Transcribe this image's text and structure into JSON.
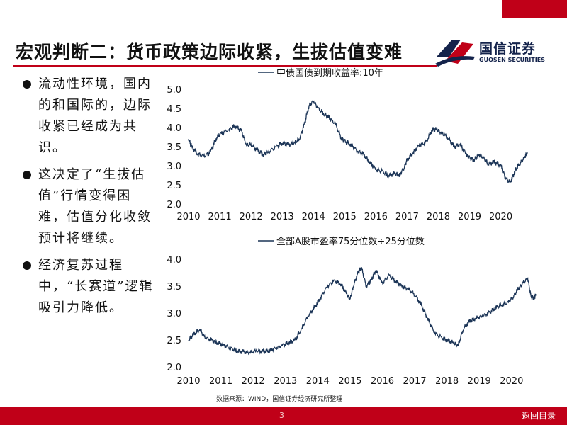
{
  "slide": {
    "title": "宏观判断二：货币政策边际收紧，生拔估值变难",
    "logo_name": "国信证券",
    "logo_sub": "GUOSEN SECURITIES",
    "source": "数据来源：WIND，国信证券经济研究所整理",
    "page_number": "3",
    "back_label": "返回目录",
    "colors": {
      "accent_red": "#c00018",
      "navy": "#14234b",
      "line": "#1c3557"
    }
  },
  "bullets": [
    {
      "text": "流动性环境，国内的和国际的，边际收紧已经成为共识。"
    },
    {
      "text": "这决定了“生拔估值”行情变得困难，估值分化收敛预计将继续。"
    },
    {
      "text": "经济复苏过程中，“长赛道”逻辑吸引力降低。"
    }
  ],
  "chart_data": [
    {
      "type": "line",
      "title": "",
      "legend": "中债国债到期收益率:10年",
      "legend_position": "top-right",
      "xlabel": "",
      "ylabel": "",
      "x_ticks": [
        "2010",
        "2011",
        "2012",
        "2013",
        "2014",
        "2015",
        "2016",
        "2017",
        "2018",
        "2019",
        "2020"
      ],
      "y_ticks": [
        "5.0",
        "4.5",
        "4.0",
        "3.5",
        "3.0",
        "2.5",
        "2.0"
      ],
      "xlim": [
        2010.0,
        2020.85
      ],
      "ylim": [
        2.0,
        5.0
      ],
      "grid": false,
      "series": [
        {
          "name": "中债国债到期收益率:10年",
          "x": [
            2010.0,
            2010.1,
            2010.3,
            2010.5,
            2010.7,
            2010.9,
            2011.05,
            2011.3,
            2011.5,
            2011.7,
            2011.85,
            2012.0,
            2012.2,
            2012.4,
            2012.55,
            2012.8,
            2013.0,
            2013.2,
            2013.4,
            2013.55,
            2013.7,
            2013.85,
            2014.0,
            2014.15,
            2014.35,
            2014.5,
            2014.7,
            2014.9,
            2015.0,
            2015.2,
            2015.4,
            2015.6,
            2015.8,
            2016.0,
            2016.2,
            2016.4,
            2016.6,
            2016.75,
            2016.9,
            2017.0,
            2017.2,
            2017.4,
            2017.6,
            2017.8,
            2017.95,
            2018.1,
            2018.3,
            2018.5,
            2018.7,
            2018.9,
            2019.0,
            2019.15,
            2019.3,
            2019.45,
            2019.6,
            2019.8,
            2020.0,
            2020.15,
            2020.3,
            2020.45,
            2020.6,
            2020.75,
            2020.85
          ],
          "y": [
            3.7,
            3.5,
            3.3,
            3.25,
            3.35,
            3.75,
            3.85,
            3.95,
            4.05,
            3.9,
            3.55,
            3.55,
            3.4,
            3.3,
            3.35,
            3.5,
            3.6,
            3.55,
            3.6,
            3.7,
            4.05,
            4.55,
            4.7,
            4.5,
            4.35,
            4.25,
            4.1,
            3.7,
            3.65,
            3.55,
            3.4,
            3.3,
            3.1,
            2.9,
            2.85,
            2.75,
            2.8,
            2.75,
            2.95,
            3.15,
            3.35,
            3.55,
            3.6,
            3.95,
            3.95,
            3.85,
            3.75,
            3.5,
            3.55,
            3.3,
            3.2,
            3.15,
            3.3,
            3.2,
            3.05,
            3.1,
            3.0,
            2.7,
            2.55,
            2.85,
            3.05,
            3.2,
            3.35
          ]
        }
      ]
    },
    {
      "type": "line",
      "title": "",
      "legend": "全部A股市盈率75分位数÷25分位数",
      "legend_position": "top-right",
      "xlabel": "",
      "ylabel": "",
      "x_ticks": [
        "2010",
        "2011",
        "2012",
        "2013",
        "2014",
        "2015",
        "2016",
        "2017",
        "2018",
        "2019",
        "2020"
      ],
      "y_ticks": [
        "4.0",
        "3.5",
        "3.0",
        "2.5",
        "2.0"
      ],
      "xlim": [
        2010.0,
        2020.75
      ],
      "ylim": [
        2.0,
        4.0
      ],
      "grid": false,
      "series": [
        {
          "name": "全部A股市盈率75分位数÷25分位数",
          "x": [
            2010.0,
            2010.15,
            2010.35,
            2010.5,
            2010.7,
            2010.9,
            2011.1,
            2011.3,
            2011.5,
            2011.7,
            2011.9,
            2012.1,
            2012.3,
            2012.5,
            2012.7,
            2012.9,
            2013.1,
            2013.3,
            2013.5,
            2013.7,
            2013.9,
            2014.1,
            2014.3,
            2014.5,
            2014.7,
            2014.9,
            2015.0,
            2015.1,
            2015.25,
            2015.35,
            2015.5,
            2015.65,
            2015.8,
            2016.0,
            2016.2,
            2016.4,
            2016.6,
            2016.8,
            2017.0,
            2017.2,
            2017.4,
            2017.6,
            2017.8,
            2018.0,
            2018.2,
            2018.35,
            2018.5,
            2018.7,
            2018.9,
            2019.1,
            2019.3,
            2019.5,
            2019.7,
            2019.9,
            2020.05,
            2020.2,
            2020.35,
            2020.5,
            2020.6,
            2020.7,
            2020.75
          ],
          "y": [
            2.5,
            2.6,
            2.7,
            2.55,
            2.5,
            2.45,
            2.4,
            2.35,
            2.3,
            2.28,
            2.27,
            2.3,
            2.28,
            2.3,
            2.35,
            2.4,
            2.45,
            2.5,
            2.7,
            2.95,
            3.1,
            3.3,
            3.5,
            3.6,
            3.55,
            3.35,
            3.25,
            3.5,
            3.75,
            3.85,
            3.5,
            3.6,
            3.8,
            3.55,
            3.7,
            3.6,
            3.5,
            3.45,
            3.35,
            3.15,
            2.9,
            2.65,
            2.55,
            2.5,
            2.45,
            2.4,
            2.7,
            2.85,
            2.9,
            2.95,
            3.0,
            3.1,
            3.15,
            3.2,
            3.3,
            3.45,
            3.55,
            3.65,
            3.3,
            3.28,
            3.35
          ]
        }
      ]
    }
  ]
}
